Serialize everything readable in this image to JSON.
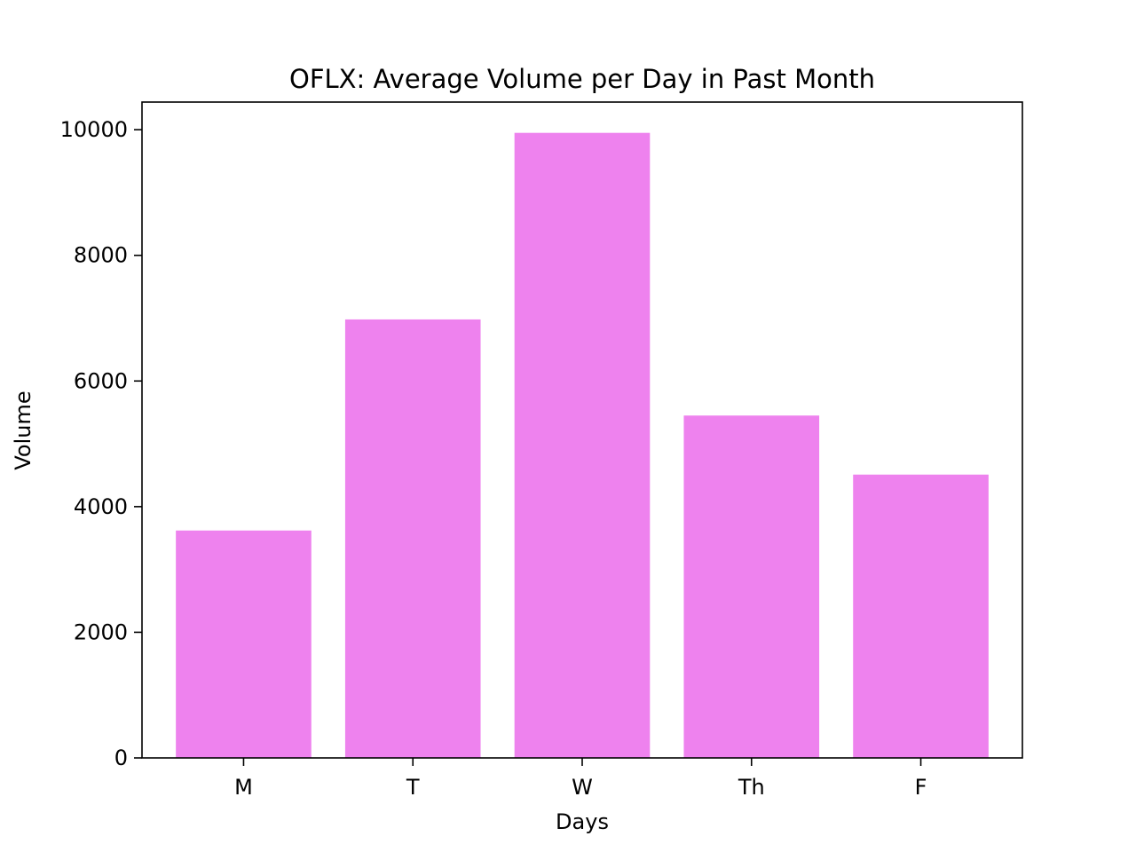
{
  "chart_data": {
    "type": "bar",
    "title": "OFLX: Average Volume per Day in Past Month",
    "xlabel": "Days",
    "ylabel": "Volume",
    "categories": [
      "M",
      "T",
      "W",
      "Th",
      "F"
    ],
    "values": [
      3620,
      6980,
      9950,
      5450,
      4510
    ],
    "ylim": [
      0,
      10440
    ],
    "yticks": [
      0,
      2000,
      4000,
      6000,
      8000,
      10000
    ],
    "bar_color": "#ee82ee",
    "grid": false,
    "legend": "none"
  }
}
